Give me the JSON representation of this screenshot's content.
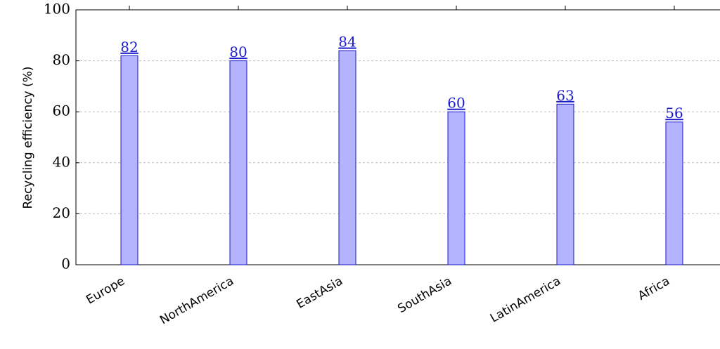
{
  "chart_data": {
    "type": "bar",
    "y_label": "Recycling efficiency (%)",
    "categories": [
      "Europe",
      "NorthAmerica",
      "EastAsia",
      "SouthAsia",
      "LatinAmerica",
      "Africa"
    ],
    "values": [
      82,
      80,
      84,
      60,
      63,
      56
    ],
    "color": "#b3b3ff",
    "ylim": [
      0,
      100
    ],
    "yticks": [
      0,
      20,
      40,
      60,
      80,
      100
    ],
    "grid": true
  }
}
